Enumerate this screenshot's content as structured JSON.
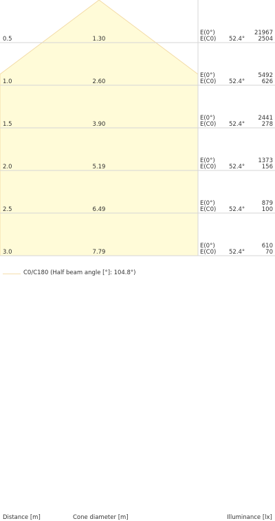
{
  "headers": {
    "distance": "Distance [m]",
    "cone_diameter": "Cone diameter [m]",
    "illuminance": "Illuminance [lx]"
  },
  "legend": {
    "label": "C0/C180 (Half beam angle [°]: 104.8°)",
    "color": "#f5deab"
  },
  "colors": {
    "cone_fill": "#fffbd8",
    "cone_stroke": "#f3dba6",
    "grid": "#d6d6d6"
  },
  "rows": [
    {
      "distance": "0.5",
      "diameter": "1.30",
      "label_max": "E(0°)",
      "label_c0": "E(C0)",
      "angle": "52.4°",
      "e_max": "21967",
      "e_c0": "2504"
    },
    {
      "distance": "1.0",
      "diameter": "2.60",
      "label_max": "E(0°)",
      "label_c0": "E(C0)",
      "angle": "52.4°",
      "e_max": "5492",
      "e_c0": "626"
    },
    {
      "distance": "1.5",
      "diameter": "3.90",
      "label_max": "E(0°)",
      "label_c0": "E(C0)",
      "angle": "52.4°",
      "e_max": "2441",
      "e_c0": "278"
    },
    {
      "distance": "2.0",
      "diameter": "5.19",
      "label_max": "E(0°)",
      "label_c0": "E(C0)",
      "angle": "52.4°",
      "e_max": "1373",
      "e_c0": "156"
    },
    {
      "distance": "2.5",
      "diameter": "6.49",
      "label_max": "E(0°)",
      "label_c0": "E(C0)",
      "angle": "52.4°",
      "e_max": "879",
      "e_c0": "100"
    },
    {
      "distance": "3.0",
      "diameter": "7.79",
      "label_max": "E(0°)",
      "label_c0": "E(C0)",
      "angle": "52.4°",
      "e_max": "610",
      "e_c0": "70"
    }
  ]
}
